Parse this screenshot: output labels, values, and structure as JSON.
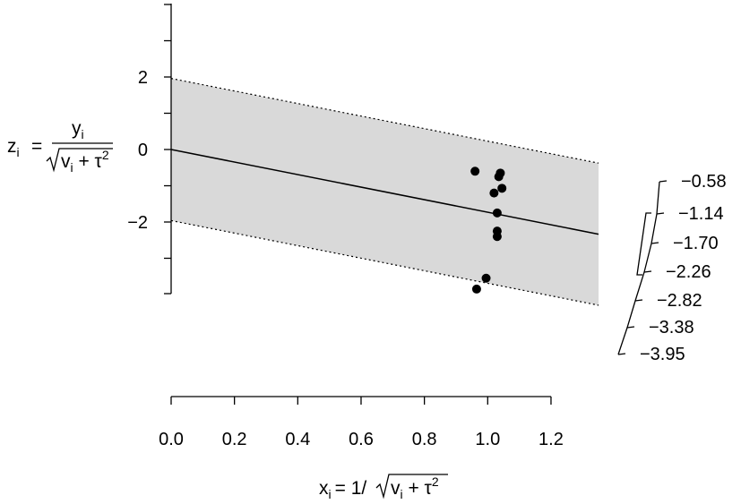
{
  "chart_data": {
    "type": "scatter",
    "subtype": "radial (Galbraith) plot",
    "xlabel": {
      "x_letter": "x",
      "x_sub": "i",
      "eq": "= 1/",
      "v": "v",
      "v_sub": "i",
      "plus_tau": " + τ",
      "sq": "2"
    },
    "ylabel": {
      "z_letter": "z",
      "z_sub": "i",
      "eq": "=",
      "num_y": "y",
      "num_sub": "i",
      "den_v": "v",
      "den_sub": "i",
      "den_plus_tau": " + τ",
      "den_sq": "2"
    },
    "xlim": [
      0,
      1.35
    ],
    "ylim": [
      -4.0,
      4.0
    ],
    "x_ticks": [
      0.0,
      0.2,
      0.4,
      0.6,
      0.8,
      1.0,
      1.2
    ],
    "x_tick_labels": [
      "0.0",
      "0.2",
      "0.4",
      "0.6",
      "0.8",
      "1.0",
      "1.2"
    ],
    "y_ticks_major": [
      2,
      0,
      -2
    ],
    "y_tick_labels": [
      "2",
      "0",
      "−2"
    ],
    "y_ticks_minor": [
      4,
      3,
      1,
      -1,
      -3,
      -4
    ],
    "regression_slope": -1.73,
    "band_halfwidth": 1.96,
    "band_color": "#d9d9d9",
    "line_color": "#000000",
    "point_color": "#000000",
    "points": [
      {
        "x": 0.96,
        "y": -0.6
      },
      {
        "x": 1.04,
        "y": -0.65
      },
      {
        "x": 1.035,
        "y": -0.75
      },
      {
        "x": 1.045,
        "y": -1.07
      },
      {
        "x": 1.02,
        "y": -1.2
      },
      {
        "x": 1.03,
        "y": -1.75
      },
      {
        "x": 1.03,
        "y": -2.25
      },
      {
        "x": 1.03,
        "y": -2.4
      },
      {
        "x": 0.995,
        "y": -3.55
      },
      {
        "x": 0.965,
        "y": -3.85
      }
    ],
    "radial_scale": {
      "tick_labels": [
        "−0.58",
        "−1.14",
        "−1.70",
        "−2.26",
        "−2.82",
        "−3.38",
        "−3.95"
      ],
      "values": [
        -0.58,
        -1.14,
        -1.7,
        -2.26,
        -2.82,
        -3.38,
        -3.95
      ],
      "bracket_range": [
        -1.14,
        -2.26
      ]
    }
  }
}
